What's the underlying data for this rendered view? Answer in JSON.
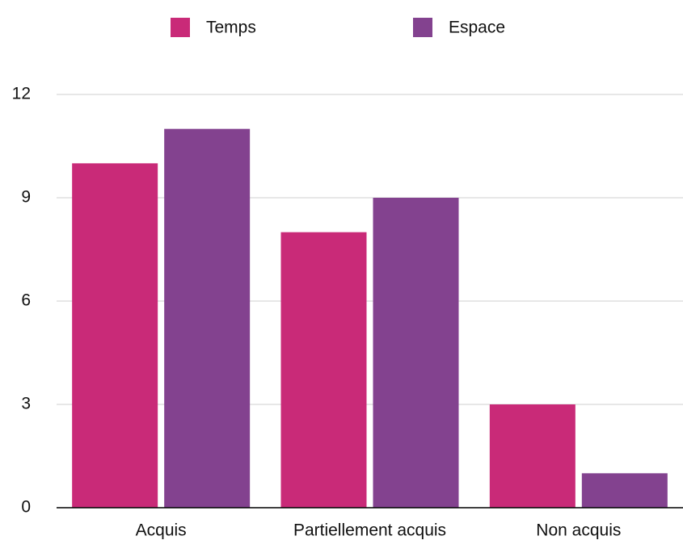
{
  "chart_data": {
    "type": "bar",
    "categories": [
      "Acquis",
      "Partiellement acquis",
      "Non acquis"
    ],
    "series": [
      {
        "name": "Temps",
        "color": "#c92a78",
        "values": [
          10,
          8,
          3
        ]
      },
      {
        "name": "Espace",
        "color": "#83428f",
        "values": [
          11,
          9,
          1
        ]
      }
    ],
    "ylim": [
      0,
      12
    ],
    "yticks": [
      0,
      3,
      6,
      9,
      12
    ],
    "grid": true,
    "legend": "top"
  }
}
